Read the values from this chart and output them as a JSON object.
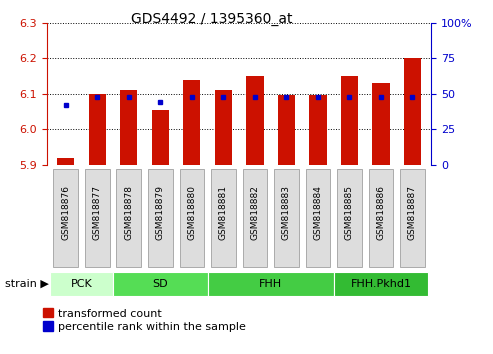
{
  "title": "GDS4492 / 1395360_at",
  "samples": [
    "GSM818876",
    "GSM818877",
    "GSM818878",
    "GSM818879",
    "GSM818880",
    "GSM818881",
    "GSM818882",
    "GSM818883",
    "GSM818884",
    "GSM818885",
    "GSM818886",
    "GSM818887"
  ],
  "red_values": [
    5.92,
    6.1,
    6.11,
    6.055,
    6.14,
    6.11,
    6.15,
    6.098,
    6.098,
    6.15,
    6.13,
    6.2
  ],
  "blue_values": [
    6.068,
    6.09,
    6.09,
    6.078,
    6.092,
    6.092,
    6.092,
    6.09,
    6.09,
    6.09,
    6.09,
    6.09
  ],
  "ylim_left": [
    5.9,
    6.3
  ],
  "ylim_right": [
    0,
    100
  ],
  "yticks_left": [
    5.9,
    6.0,
    6.1,
    6.2,
    6.3
  ],
  "yticks_right": [
    0,
    25,
    50,
    75,
    100
  ],
  "bar_bottom": 5.9,
  "bar_color": "#cc1100",
  "dot_color": "#0000cc",
  "groups": [
    {
      "label": "PCK",
      "start": 0,
      "end": 2,
      "color": "#ccffcc"
    },
    {
      "label": "SD",
      "start": 2,
      "end": 5,
      "color": "#55dd55"
    },
    {
      "label": "FHH",
      "start": 5,
      "end": 9,
      "color": "#44cc44"
    },
    {
      "label": "FHH.Pkhd1",
      "start": 9,
      "end": 12,
      "color": "#33bb33"
    }
  ],
  "legend_red": "transformed count",
  "legend_blue": "percentile rank within the sample",
  "xlabel_label": "strain",
  "bg_color": "#ffffff",
  "tick_color_left": "#cc1100",
  "tick_color_right": "#0000cc",
  "xtick_bg": "#dddddd",
  "xtick_edge": "#aaaaaa"
}
